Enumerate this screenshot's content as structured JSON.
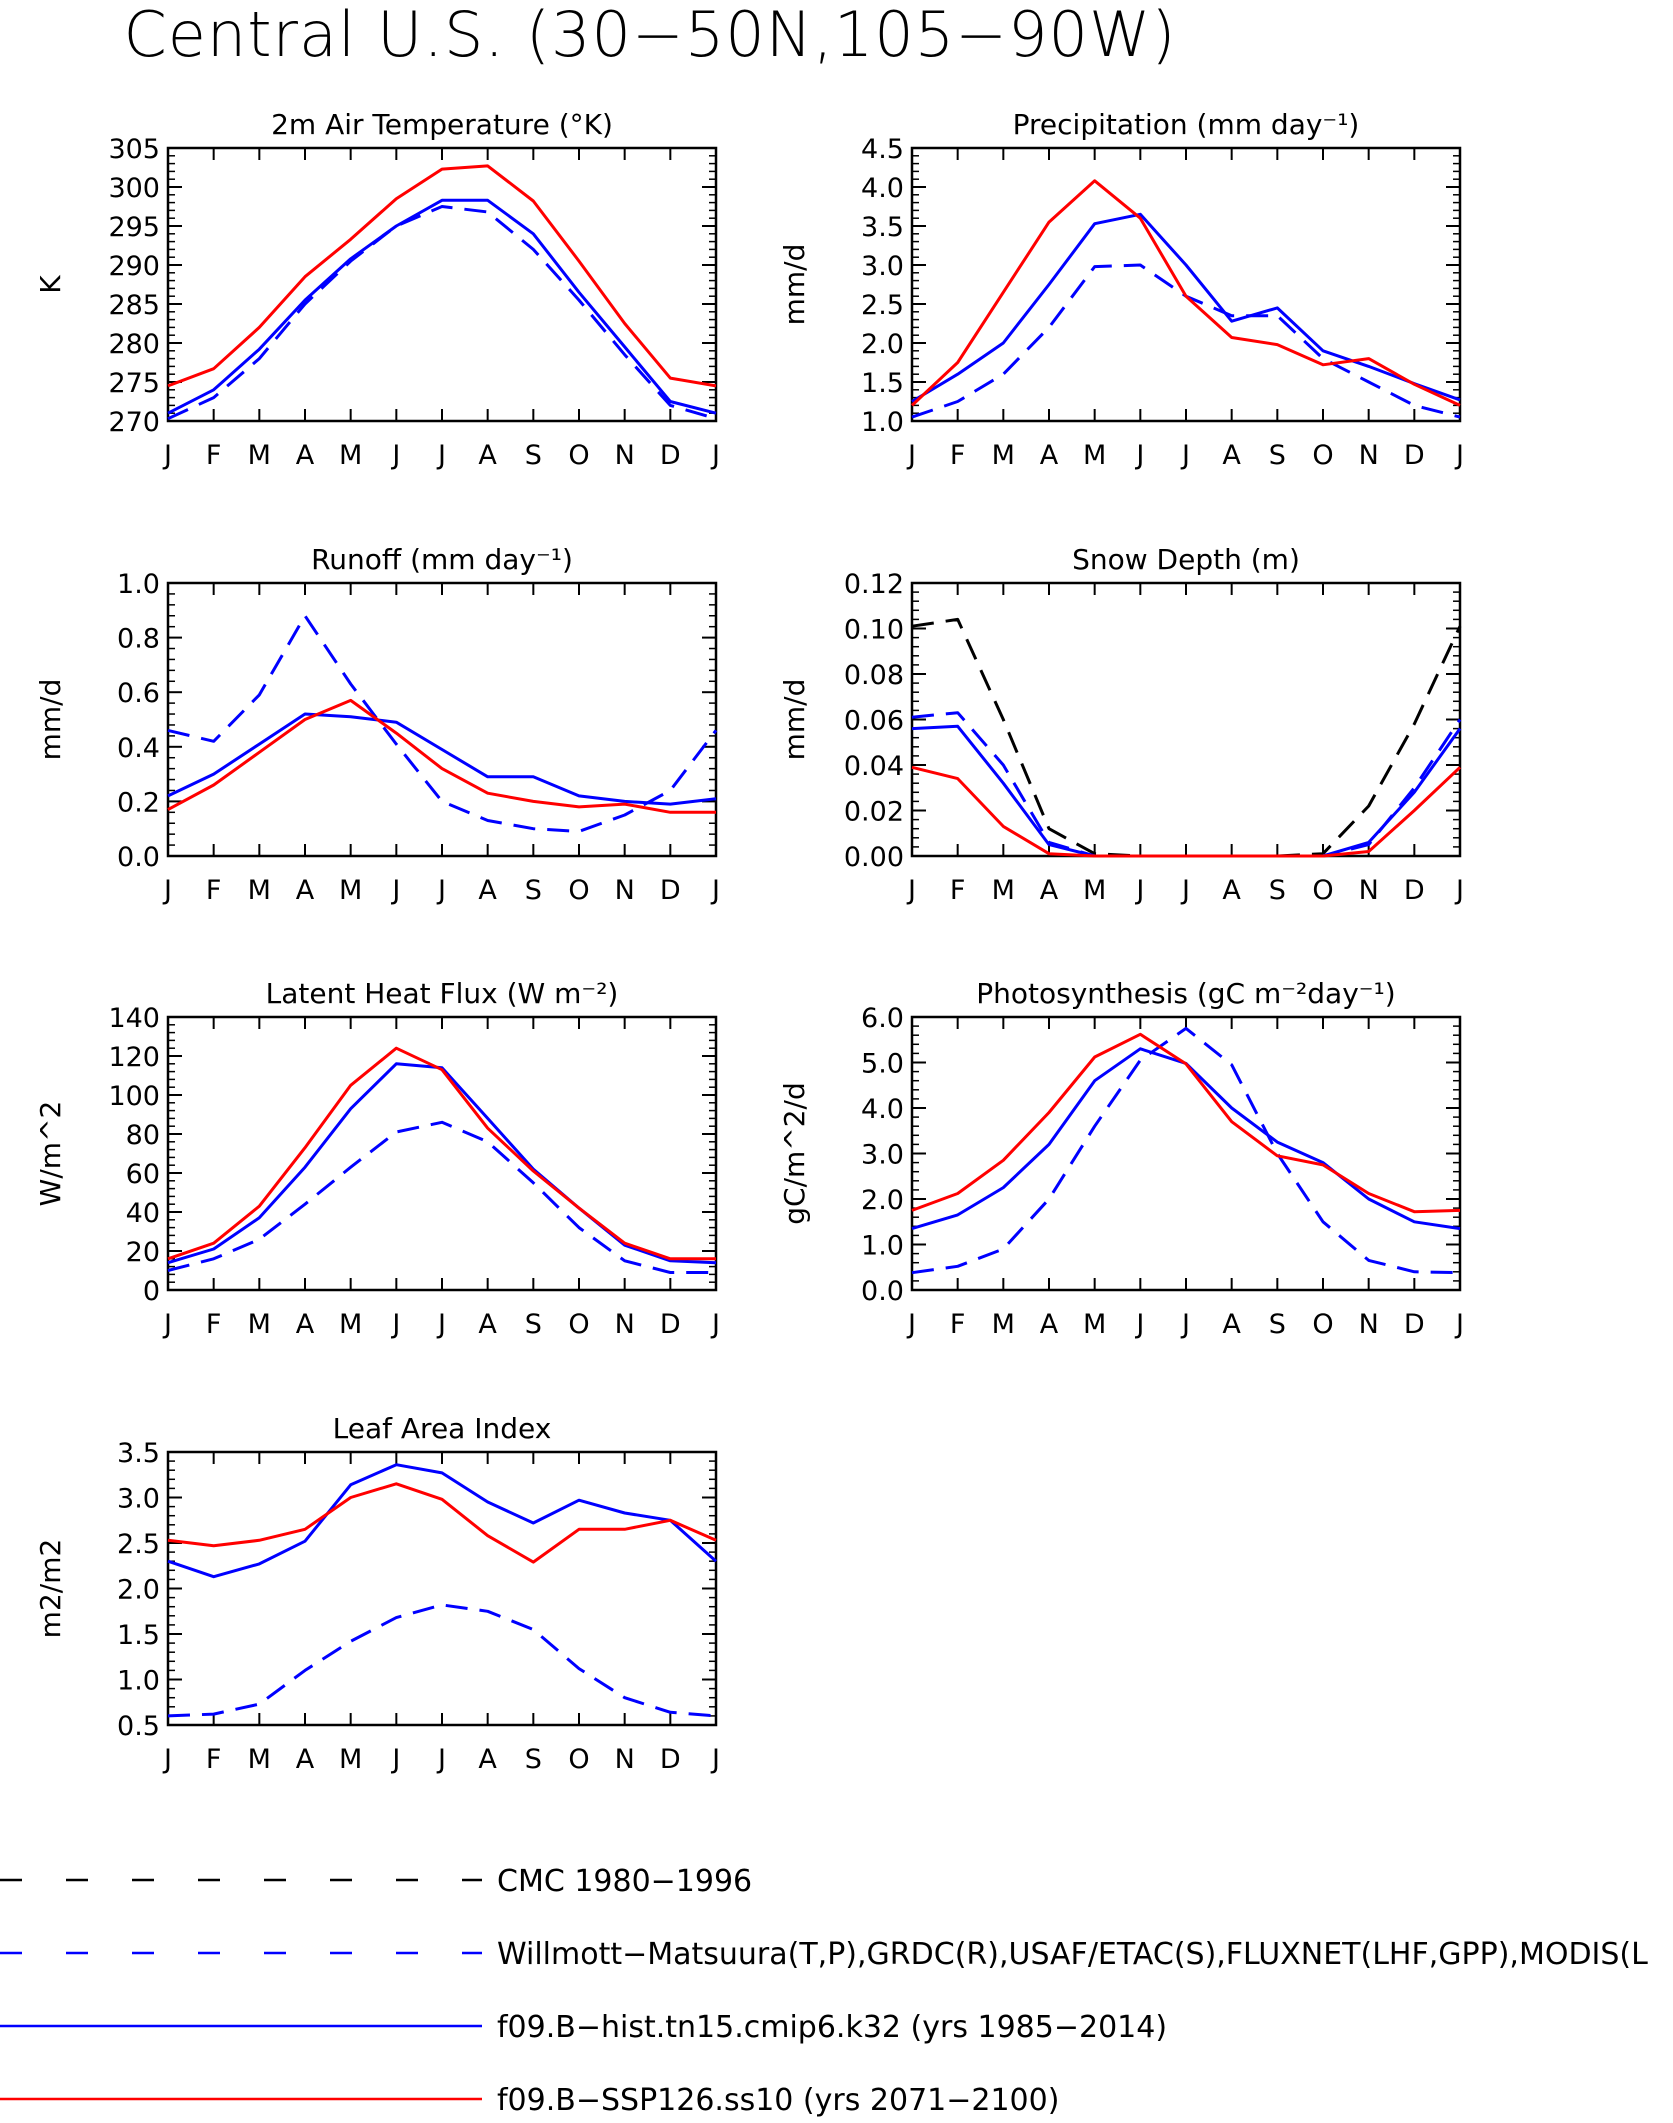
{
  "page_title": "Central U.S. (30−50N,105−90W)",
  "colors": {
    "black": "#000000",
    "blue": "#0000ff",
    "red": "#ff0000"
  },
  "legend": [
    {
      "label": "CMC 1980−1996",
      "color": "#000000",
      "dash": true
    },
    {
      "label": "Willmott−Matsuura(T,P),GRDC(R),USAF/ETAC(S),FLUXNET(LHF,GPP),MODIS(L",
      "color": "#0000ff",
      "dash": true
    },
    {
      "label": "f09.B−hist.tn15.cmip6.k32 (yrs 1985−2014)",
      "color": "#0000ff",
      "dash": false
    },
    {
      "label": "f09.B−SSP126.ss10 (yrs 2071−2100)",
      "color": "#ff0000",
      "dash": false
    }
  ],
  "chart_data": [
    {
      "type": "line",
      "title": "2m Air Temperature (°K)",
      "ylabel": "K",
      "categories": [
        "J",
        "F",
        "M",
        "A",
        "M",
        "J",
        "J",
        "A",
        "S",
        "O",
        "N",
        "D",
        "J"
      ],
      "ylim": [
        270,
        305
      ],
      "yticks": [
        "270",
        "275",
        "280",
        "285",
        "290",
        "295",
        "300",
        "305"
      ],
      "series": [
        {
          "style": "obs",
          "values": [
            270.3,
            273.0,
            278.0,
            285.0,
            290.5,
            295.0,
            297.5,
            296.8,
            292.0,
            285.5,
            278.5,
            272.0,
            270.3
          ]
        },
        {
          "style": "hist",
          "values": [
            271.0,
            274.0,
            279.2,
            285.5,
            290.8,
            295.0,
            298.3,
            298.3,
            294.0,
            286.5,
            279.5,
            272.5,
            271.0
          ]
        },
        {
          "style": "ssp",
          "values": [
            274.5,
            276.7,
            282.0,
            288.5,
            293.3,
            298.5,
            302.3,
            302.7,
            298.2,
            290.5,
            282.5,
            275.5,
            274.5
          ]
        }
      ]
    },
    {
      "type": "line",
      "title": "Precipitation (mm day⁻¹)",
      "ylabel": "mm/d",
      "categories": [
        "J",
        "F",
        "M",
        "A",
        "M",
        "J",
        "J",
        "A",
        "S",
        "O",
        "N",
        "D",
        "J"
      ],
      "ylim": [
        1.0,
        4.5
      ],
      "yticks": [
        "1.0",
        "1.5",
        "2.0",
        "2.5",
        "3.0",
        "3.5",
        "4.0",
        "4.5"
      ],
      "series": [
        {
          "style": "obs",
          "values": [
            1.05,
            1.25,
            1.6,
            2.2,
            2.98,
            3.0,
            2.6,
            2.35,
            2.35,
            1.8,
            1.5,
            1.2,
            1.05
          ]
        },
        {
          "style": "hist",
          "values": [
            1.25,
            1.6,
            2.0,
            2.75,
            3.53,
            3.65,
            3.0,
            2.28,
            2.45,
            1.9,
            1.7,
            1.48,
            1.27
          ]
        },
        {
          "style": "ssp",
          "values": [
            1.2,
            1.75,
            2.65,
            3.55,
            4.08,
            3.6,
            2.6,
            2.07,
            1.98,
            1.72,
            1.8,
            1.47,
            1.2
          ]
        }
      ]
    },
    {
      "type": "line",
      "title": "Runoff (mm day⁻¹)",
      "ylabel": "mm/d",
      "categories": [
        "J",
        "F",
        "M",
        "A",
        "M",
        "J",
        "J",
        "A",
        "S",
        "O",
        "N",
        "D",
        "J"
      ],
      "ylim": [
        0.0,
        1.0
      ],
      "yticks": [
        "0.0",
        "0.2",
        "0.4",
        "0.6",
        "0.8",
        "1.0"
      ],
      "series": [
        {
          "style": "obs",
          "values": [
            0.46,
            0.42,
            0.59,
            0.88,
            0.63,
            0.41,
            0.2,
            0.13,
            0.1,
            0.09,
            0.15,
            0.24,
            0.46
          ]
        },
        {
          "style": "hist",
          "values": [
            0.22,
            0.3,
            0.41,
            0.52,
            0.51,
            0.49,
            0.39,
            0.29,
            0.29,
            0.22,
            0.2,
            0.19,
            0.21
          ]
        },
        {
          "style": "ssp",
          "values": [
            0.17,
            0.26,
            0.38,
            0.5,
            0.57,
            0.45,
            0.32,
            0.23,
            0.2,
            0.18,
            0.19,
            0.16,
            0.16
          ]
        }
      ]
    },
    {
      "type": "line",
      "title": "Snow Depth (m)",
      "ylabel": "mm/d",
      "categories": [
        "J",
        "F",
        "M",
        "A",
        "M",
        "J",
        "J",
        "A",
        "S",
        "O",
        "N",
        "D",
        "J"
      ],
      "ylim": [
        0.0,
        0.12
      ],
      "yticks": [
        "0.00",
        "0.02",
        "0.04",
        "0.06",
        "0.08",
        "0.10",
        "0.12"
      ],
      "series": [
        {
          "style": "cmc",
          "values": [
            0.101,
            0.104,
            0.06,
            0.012,
            0.001,
            0.0,
            0.0,
            0.0,
            0.0,
            0.001,
            0.022,
            0.058,
            0.101
          ]
        },
        {
          "style": "obs",
          "values": [
            0.061,
            0.063,
            0.04,
            0.006,
            0.0,
            0.0,
            0.0,
            0.0,
            0.0,
            0.0,
            0.005,
            0.03,
            0.06
          ]
        },
        {
          "style": "hist",
          "values": [
            0.056,
            0.057,
            0.032,
            0.005,
            0.0,
            0.0,
            0.0,
            0.0,
            0.0,
            0.0,
            0.006,
            0.028,
            0.056
          ]
        },
        {
          "style": "ssp",
          "values": [
            0.039,
            0.034,
            0.013,
            0.001,
            0.0,
            0.0,
            0.0,
            0.0,
            0.0,
            0.0,
            0.002,
            0.02,
            0.039
          ]
        }
      ]
    },
    {
      "type": "line",
      "title": "Latent Heat Flux (W m⁻²)",
      "ylabel": "W/m^2",
      "categories": [
        "J",
        "F",
        "M",
        "A",
        "M",
        "J",
        "J",
        "A",
        "S",
        "O",
        "N",
        "D",
        "J"
      ],
      "ylim": [
        0,
        140
      ],
      "yticks": [
        "0",
        "20",
        "40",
        "60",
        "80",
        "100",
        "120",
        "140"
      ],
      "series": [
        {
          "style": "obs",
          "values": [
            10,
            16,
            26,
            44,
            63,
            81,
            86,
            76,
            55,
            32,
            15,
            9,
            9
          ]
        },
        {
          "style": "hist",
          "values": [
            14,
            21,
            37,
            63,
            93,
            116,
            114,
            88,
            62,
            42,
            23,
            15,
            14
          ]
        },
        {
          "style": "ssp",
          "values": [
            16,
            24,
            43,
            73,
            105,
            124,
            113,
            83,
            61,
            42,
            24,
            16,
            16
          ]
        }
      ]
    },
    {
      "type": "line",
      "title": "Photosynthesis (gC m⁻²day⁻¹)",
      "ylabel": "gC/m^2/d",
      "categories": [
        "J",
        "F",
        "M",
        "A",
        "M",
        "J",
        "J",
        "A",
        "S",
        "O",
        "N",
        "D",
        "J"
      ],
      "ylim": [
        0.0,
        6.0
      ],
      "yticks": [
        "0.0",
        "1.0",
        "2.0",
        "3.0",
        "4.0",
        "5.0",
        "6.0"
      ],
      "series": [
        {
          "style": "obs",
          "values": [
            0.38,
            0.52,
            0.9,
            2.0,
            3.6,
            5.05,
            5.75,
            4.95,
            3.0,
            1.5,
            0.65,
            0.4,
            0.38
          ]
        },
        {
          "style": "hist",
          "values": [
            1.35,
            1.65,
            2.25,
            3.2,
            4.6,
            5.3,
            4.98,
            4.0,
            3.25,
            2.8,
            2.0,
            1.5,
            1.35
          ]
        },
        {
          "style": "ssp",
          "values": [
            1.75,
            2.12,
            2.85,
            3.9,
            5.12,
            5.62,
            4.97,
            3.7,
            2.95,
            2.75,
            2.12,
            1.72,
            1.75
          ]
        }
      ]
    },
    {
      "type": "line",
      "title": "Leaf Area Index",
      "ylabel": "m2/m2",
      "categories": [
        "J",
        "F",
        "M",
        "A",
        "M",
        "J",
        "J",
        "A",
        "S",
        "O",
        "N",
        "D",
        "J"
      ],
      "ylim": [
        0.5,
        3.5
      ],
      "yticks": [
        "0.5",
        "1.0",
        "1.5",
        "2.0",
        "2.5",
        "3.0",
        "3.5"
      ],
      "series": [
        {
          "style": "obs",
          "values": [
            0.6,
            0.62,
            0.73,
            1.1,
            1.42,
            1.68,
            1.82,
            1.75,
            1.55,
            1.12,
            0.8,
            0.64,
            0.6
          ]
        },
        {
          "style": "hist",
          "values": [
            2.3,
            2.13,
            2.27,
            2.52,
            3.14,
            3.36,
            3.27,
            2.95,
            2.72,
            2.97,
            2.83,
            2.75,
            2.3
          ]
        },
        {
          "style": "ssp",
          "values": [
            2.53,
            2.47,
            2.53,
            2.65,
            3.0,
            3.15,
            2.98,
            2.58,
            2.29,
            2.65,
            2.65,
            2.75,
            2.53
          ]
        }
      ]
    }
  ]
}
